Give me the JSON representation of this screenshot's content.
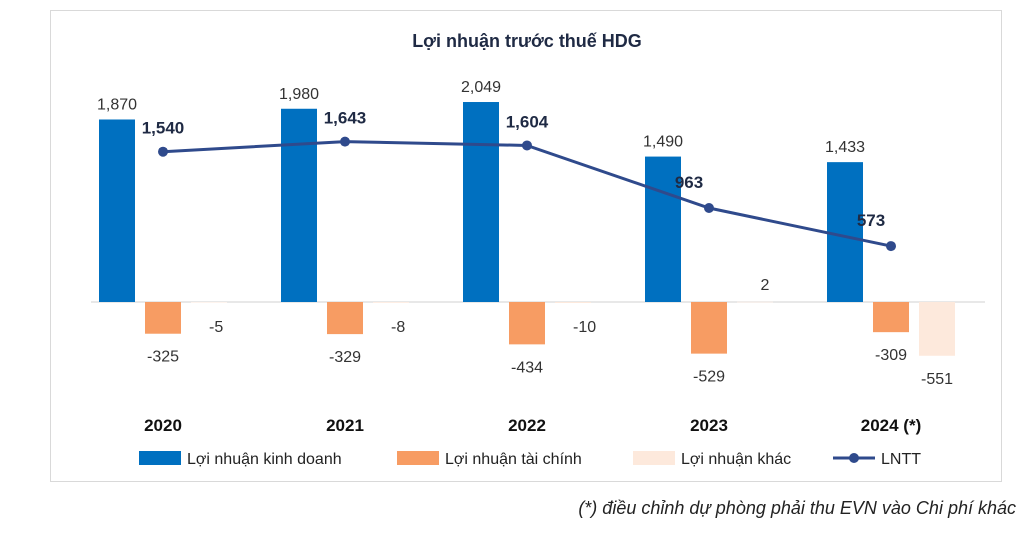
{
  "chart_data": {
    "type": "bar",
    "title": "Lợi nhuận trước thuế HDG",
    "categories": [
      "2020",
      "2021",
      "2022",
      "2023",
      "2024 (*)"
    ],
    "series": [
      {
        "name": "Lợi nhuận kinh doanh",
        "kind": "bar",
        "color": "#0070C0",
        "values": [
          1870,
          1980,
          2049,
          1490,
          1433
        ],
        "labels": [
          "1,870",
          "1,980",
          "2,049",
          "1,490",
          "1,433"
        ]
      },
      {
        "name": "Lợi nhuận tài chính",
        "kind": "bar",
        "color": "#F79C63",
        "values": [
          -325,
          -329,
          -434,
          -529,
          -309
        ],
        "labels": [
          "-325",
          "-329",
          "-434",
          "-529",
          "-309"
        ]
      },
      {
        "name": "Lợi nhuận khác",
        "kind": "bar",
        "color": "#FDE9DC",
        "values": [
          -5,
          -8,
          -10,
          2,
          -551
        ],
        "labels": [
          "-5",
          "-8",
          "-10",
          "2",
          "-551"
        ]
      },
      {
        "name": "LNTT",
        "kind": "line",
        "color": "#2F4A8C",
        "values": [
          1540,
          1643,
          1604,
          963,
          573
        ],
        "labels": [
          "1,540",
          "1,643",
          "1,604",
          "963",
          "573"
        ]
      }
    ],
    "xlabel": "",
    "ylabel": "",
    "ylim": [
      -700,
      2300
    ],
    "grid": false,
    "legend_position": "bottom"
  },
  "footnote": "(*) điều chỉnh dự phòng phải thu EVN vào Chi phí khác"
}
